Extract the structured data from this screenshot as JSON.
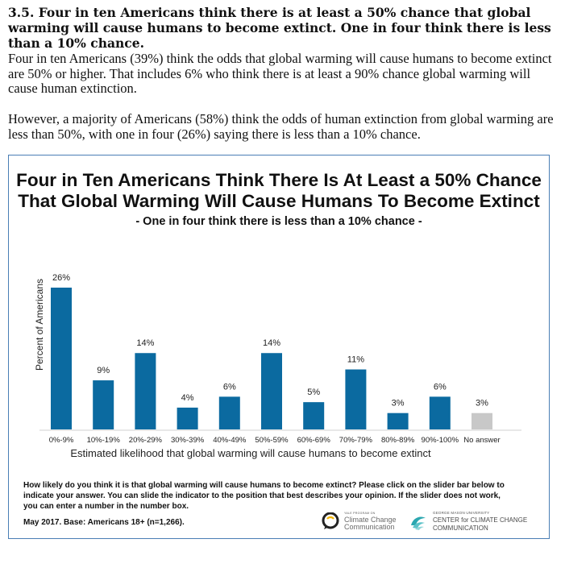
{
  "document": {
    "heading": "3.5. Four in ten Americans think there is at least a 50% chance that global warming will cause humans to become extinct. One in four think there is less than a 10% chance.",
    "paragraph1": "Four in ten Americans (39%) think the odds that global warming will cause humans to become extinct are 50% or higher. That includes 6% who think there is at least a 90% chance global warming will cause human extinction.",
    "paragraph2": "However, a majority of Americans (58%) think the odds of human extinction from global warming are less than 50%, with one in four (26%) saying there is less than a 10% chance."
  },
  "figure": {
    "title_line1": "Four in Ten Americans Think There Is At Least a 50% Chance",
    "title_line2": "That Global Warming Will Cause Humans To Become Extinct",
    "subtitle": "- One in four think there is less than a 10% chance -",
    "question": "How likely do you think it is that global warming will cause humans to become extinct? Please click on the slider bar below to indicate your answer. You can slide the indicator to the position that best describes your opinion. If the slider does not work, you can enter a number in the number box.",
    "base": "May 2017. Base: Americans 18+ (n=1,266).",
    "logo_yale_small": "YALE PROGRAM ON",
    "logo_yale_line1": "Climate Change",
    "logo_yale_line2": "Communication",
    "logo_gmu_small": "GEORGE MASON UNIVERSITY",
    "logo_gmu_line1": "CENTER for CLIMATE CHANGE",
    "logo_gmu_line2": "COMMUNICATION"
  },
  "chart_data": {
    "type": "bar",
    "title": "Four in Ten Americans Think There Is At Least a 50% Chance That Global Warming Will Cause Humans To Become Extinct",
    "subtitle": "- One in four think there is less than a 10% chance -",
    "xlabel": "Estimated likelihood that global warming will cause humans to become extinct",
    "ylabel": "Percent of Americans",
    "categories": [
      "0%-9%",
      "10%-19%",
      "20%-29%",
      "30%-39%",
      "40%-49%",
      "50%-59%",
      "60%-69%",
      "70%-79%",
      "80%-89%",
      "90%-100%",
      "No answer"
    ],
    "values": [
      26,
      9,
      14,
      4,
      6,
      14,
      5,
      11,
      3,
      6,
      3
    ],
    "data_labels": [
      "26%",
      "9%",
      "14%",
      "4%",
      "6%",
      "14%",
      "5%",
      "11%",
      "3%",
      "6%",
      "3%"
    ],
    "colors": [
      "#0b6aa0",
      "#0b6aa0",
      "#0b6aa0",
      "#0b6aa0",
      "#0b6aa0",
      "#0b6aa0",
      "#0b6aa0",
      "#0b6aa0",
      "#0b6aa0",
      "#0b6aa0",
      "#c8c8c8"
    ],
    "ylim": [
      0,
      26
    ],
    "grid": false,
    "legend": "none"
  }
}
